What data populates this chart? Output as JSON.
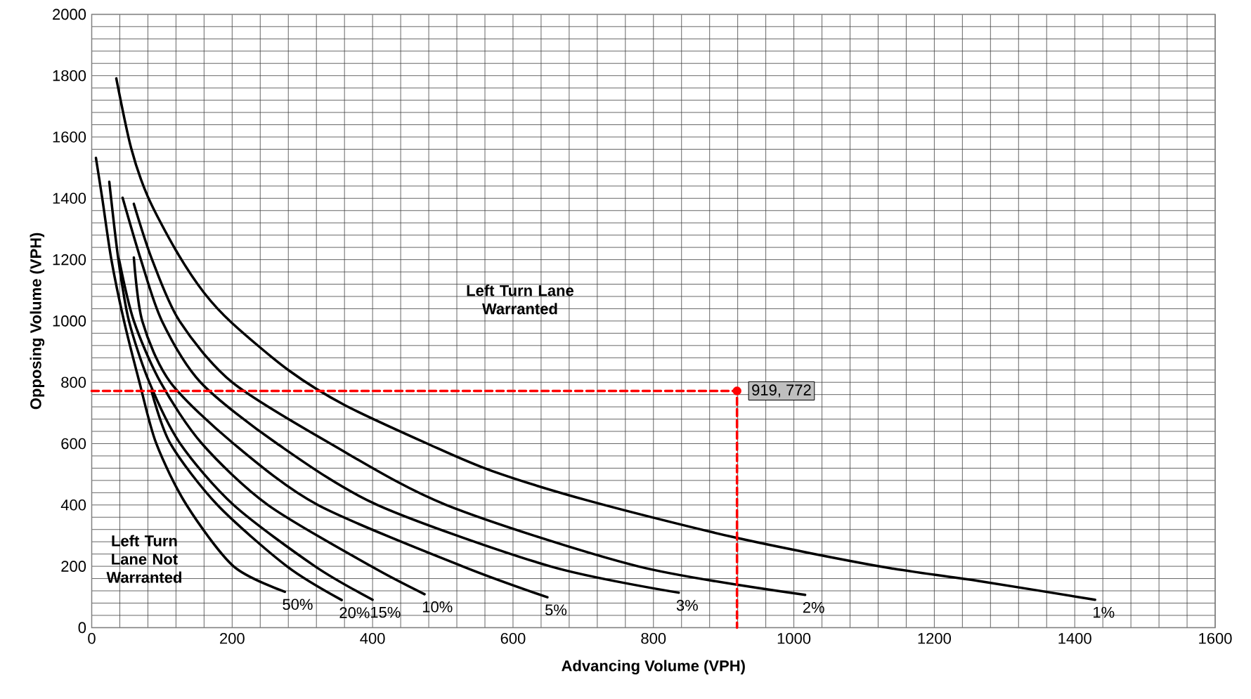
{
  "chart_data": {
    "type": "line",
    "xlabel": "Advancing Volume (VPH)",
    "ylabel": "Opposing Volume (VPH)",
    "annotations": [
      "Left Turn Lane Warranted",
      "Left Turn Lane Not Warranted"
    ],
    "xlim": [
      0,
      1600
    ],
    "ylim": [
      0,
      2000
    ],
    "xticks": [
      0,
      {
        "value": 40,
        "label": null
      },
      {
        "value": 80,
        "label": null
      },
      {
        "value": 120,
        "label": null
      },
      {
        "value": 160,
        "label": null
      },
      200,
      {
        "value": 240,
        "label": null
      },
      {
        "value": 280,
        "label": null
      },
      {
        "value": 320,
        "label": null
      },
      {
        "value": 360,
        "label": null
      },
      400,
      {
        "value": 440,
        "label": null
      },
      {
        "value": 480,
        "label": null
      },
      {
        "value": 520,
        "label": null
      },
      {
        "value": 560,
        "label": null
      },
      600,
      {
        "value": 640,
        "label": null
      },
      {
        "value": 680,
        "label": null
      },
      {
        "value": 720,
        "label": null
      },
      {
        "value": 760,
        "label": null
      },
      800,
      {
        "value": 840,
        "label": null
      },
      {
        "value": 880,
        "label": null
      },
      {
        "value": 920,
        "label": null
      },
      {
        "value": 960,
        "label": null
      },
      1000,
      {
        "value": 1040,
        "label": null
      },
      {
        "value": 1080,
        "label": null
      },
      {
        "value": 1120,
        "label": null
      },
      {
        "value": 1160,
        "label": null
      },
      1200,
      {
        "value": 1240,
        "label": null
      },
      {
        "value": 1280,
        "label": null
      },
      {
        "value": 1320,
        "label": null
      },
      {
        "value": 1360,
        "label": null
      },
      1400,
      {
        "value": 1440,
        "label": null
      },
      {
        "value": 1480,
        "label": null
      },
      {
        "value": 1520,
        "label": null
      },
      {
        "value": 1560,
        "label": null
      },
      1600
    ],
    "yticks": [
      0,
      {
        "value": 40,
        "label": null
      },
      {
        "value": 80,
        "label": null
      },
      {
        "value": 120,
        "label": null
      },
      {
        "value": 160,
        "label": null
      },
      200,
      {
        "value": 240,
        "label": null
      },
      {
        "value": 280,
        "label": null
      },
      {
        "value": 320,
        "label": null
      },
      {
        "value": 360,
        "label": null
      },
      400,
      {
        "value": 440,
        "label": null
      },
      {
        "value": 480,
        "label": null
      },
      {
        "value": 520,
        "label": null
      },
      {
        "value": 560,
        "label": null
      },
      600,
      {
        "value": 640,
        "label": null
      },
      {
        "value": 680,
        "label": null
      },
      {
        "value": 720,
        "label": null
      },
      {
        "value": 760,
        "label": null
      },
      800,
      {
        "value": 840,
        "label": null
      },
      {
        "value": 880,
        "label": null
      },
      {
        "value": 920,
        "label": null
      },
      {
        "value": 960,
        "label": null
      },
      1000,
      {
        "value": 1040,
        "label": null
      },
      {
        "value": 1080,
        "label": null
      },
      {
        "value": 1120,
        "label": null
      },
      {
        "value": 1160,
        "label": null
      },
      1200,
      {
        "value": 1240,
        "label": null
      },
      {
        "value": 1280,
        "label": null
      },
      {
        "value": 1320,
        "label": null
      },
      {
        "value": 1360,
        "label": null
      },
      1400,
      {
        "value": 1440,
        "label": null
      },
      {
        "value": 1480,
        "label": null
      },
      {
        "value": 1520,
        "label": null
      },
      {
        "value": 1560,
        "label": null
      },
      1600,
      {
        "value": 1640,
        "label": null
      },
      {
        "value": 1680,
        "label": null
      },
      {
        "value": 1720,
        "label": null
      },
      {
        "value": 1760,
        "label": null
      },
      1800,
      {
        "value": 1840,
        "label": null
      },
      {
        "value": 1880,
        "label": null
      },
      {
        "value": 1920,
        "label": null
      },
      {
        "value": 1960,
        "label": null
      },
      2000
    ],
    "grid": true,
    "marker": "none",
    "line_style": "solid",
    "series": [
      {
        "name": "50%",
        "color": "#000000",
        "x": [
          6,
          15,
          28,
          46,
          68,
          92,
          135,
          202,
          275
        ],
        "values": [
          1532,
          1400,
          1200,
          1000,
          800,
          600,
          400,
          200,
          117
        ]
      },
      {
        "name": "20%",
        "color": "#000000",
        "x": [
          85,
          112,
          179,
          278,
          356
        ],
        "values": [
          773,
          600,
          400,
          200,
          90
        ]
      },
      {
        "name": "15%",
        "color": "#000000",
        "x": [
          25,
          38,
          53,
          82,
          126,
          202,
          318,
          400
        ],
        "values": [
          1454,
          1200,
          1000,
          800,
          600,
          400,
          200,
          91
        ]
      },
      {
        "name": "10%",
        "color": "#000000",
        "x": [
          39,
          60,
          98,
          157,
          251,
          398,
          474
        ],
        "values": [
          1200,
          1000,
          800,
          600,
          400,
          200,
          109
        ]
      },
      {
        "name": "5%",
        "color": "#000000",
        "x": [
          60,
          72,
          112,
          202,
          322,
          528,
          649
        ],
        "values": [
          1207,
          1000,
          800,
          600,
          400,
          200,
          99
        ]
      },
      {
        "name": "3%",
        "color": "#000000",
        "x": [
          44,
          70,
          100,
          155,
          264,
          407,
          653,
          836
        ],
        "values": [
          1402,
          1200,
          1000,
          800,
          600,
          400,
          200,
          114
        ]
      },
      {
        "name": "2%",
        "color": "#000000",
        "x": [
          60,
          86,
          125,
          200,
          340,
          505,
          778,
          1016
        ],
        "values": [
          1382,
          1200,
          1000,
          800,
          600,
          400,
          200,
          107
        ]
      },
      {
        "name": "1%",
        "color": "#000000",
        "x": [
          35,
          56,
          80,
          120,
          160,
          200,
          280,
          360,
          478,
          570,
          709,
          916,
          1124,
          1263,
          1429
        ],
        "values": [
          1791,
          1565,
          1405,
          1230,
          1092,
          993,
          840,
          726,
          600,
          511,
          413,
          294,
          199,
          152,
          91
        ]
      },
      {
        "type": "line",
        "color": "#ff0000",
        "line_style": "dashed",
        "x": [
          0,
          919,
          919
        ],
        "values": [
          772,
          772,
          0
        ]
      },
      {
        "type": "scatter",
        "color": "#ff0000",
        "marker": "circle",
        "x": [
          919
        ],
        "values": [
          772
        ],
        "value_labels": [
          "919, 772"
        ]
      }
    ]
  }
}
